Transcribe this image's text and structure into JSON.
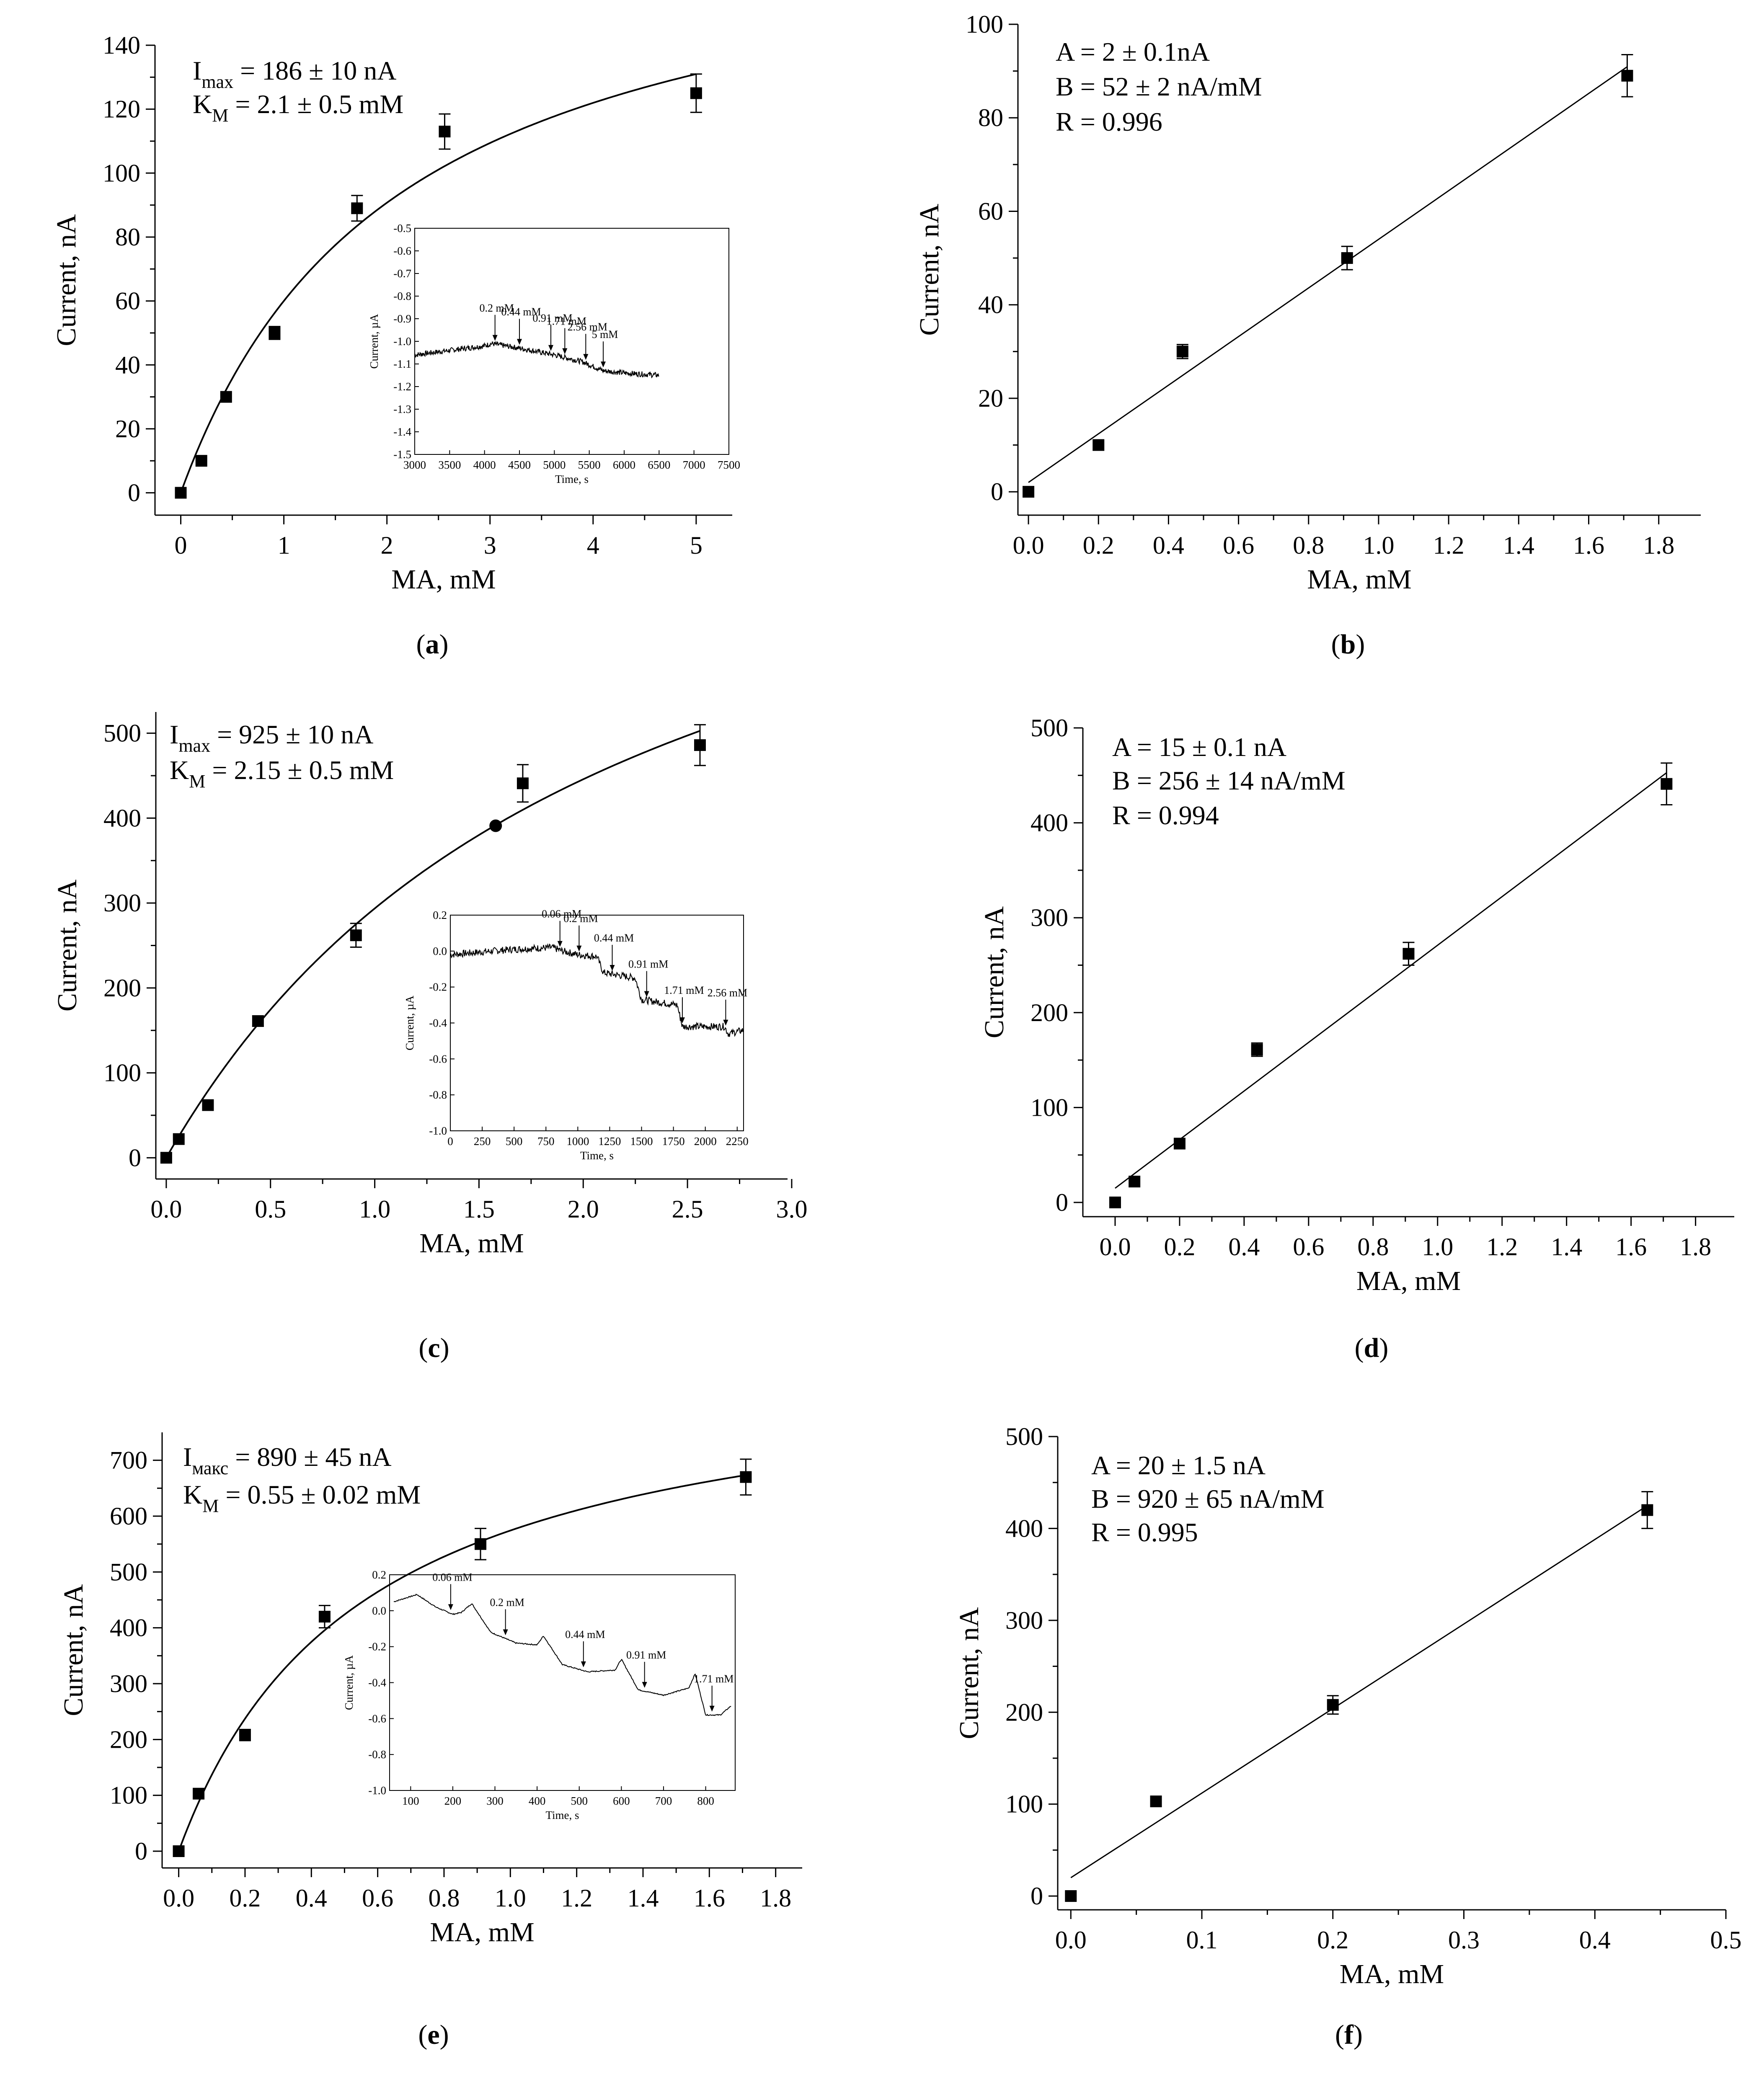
{
  "colors": {
    "ink": "#000000",
    "background": "#ffffff"
  },
  "chart_data": [
    {
      "id": "a",
      "type": "scatter",
      "caption": "a",
      "fit": "mm",
      "xlabel": "MA, mM",
      "ylabel": "Current, nA",
      "xlim": [
        -0.25,
        5.35
      ],
      "ylim": [
        -7,
        140
      ],
      "xticks": [
        0,
        1,
        2,
        3,
        4,
        5
      ],
      "xtick_labels": [
        "0",
        "1",
        "2",
        "3",
        "4",
        "5"
      ],
      "yticks": [
        0,
        20,
        40,
        60,
        80,
        100,
        120,
        140
      ],
      "ytick_labels": [
        "0",
        "20",
        "40",
        "60",
        "80",
        "100",
        "120",
        "140"
      ],
      "series": [
        {
          "name": "data",
          "x": [
            0,
            0.2,
            0.44,
            0.91,
            1.71,
            2.56,
            5
          ],
          "y": [
            0,
            10,
            30,
            50,
            89,
            113,
            125
          ],
          "err": [
            0,
            0,
            0,
            2,
            4,
            5.5,
            6
          ]
        }
      ],
      "fit_params": {
        "Imax": 186,
        "KM": 2.1,
        "x_range": [
          0,
          5
        ]
      },
      "annotation": [
        {
          "base": "I",
          "sub": "max",
          "rest": " = 186 ± 10 nA"
        },
        {
          "base": "K",
          "sub": "M",
          "rest": " = 2.1 ± 0.5 mM"
        }
      ],
      "inset": {
        "xlabel": "Time, s",
        "ylabel": "Current, µA",
        "xlim": [
          3000,
          7500
        ],
        "ylim": [
          -1.5,
          -0.5
        ],
        "xticks": [
          3000,
          3500,
          4000,
          4500,
          5000,
          5500,
          6000,
          6500,
          7000,
          7500
        ],
        "xtick_labels": [
          "3000",
          "3500",
          "4000",
          "4500",
          "5000",
          "5500",
          "6000",
          "6500",
          "7000",
          "7500"
        ],
        "yticks": [
          -1.5,
          -1.4,
          -1.3,
          -1.2,
          -1.1,
          -1.0,
          -0.9,
          -0.8,
          -0.7,
          -0.6,
          -0.5
        ],
        "ytick_labels": [
          "-1.5",
          "-1.4",
          "-1.3",
          "-1.2",
          "-1.1",
          "-1.0",
          "-0.9",
          "-0.8",
          "-0.7",
          "-0.6",
          "-0.5"
        ],
        "trace": [
          [
            3000,
            -1.06
          ],
          [
            3500,
            -1.04
          ],
          [
            4000,
            -1.02
          ],
          [
            4100,
            -1.01
          ],
          [
            4500,
            -1.03
          ],
          [
            5000,
            -1.06
          ],
          [
            5400,
            -1.09
          ],
          [
            5700,
            -1.13
          ],
          [
            6000,
            -1.14
          ],
          [
            6500,
            -1.15
          ]
        ],
        "noise": 0.012,
        "markers": [
          {
            "t": 4150,
            "label": "0.2 mM"
          },
          {
            "t": 4500,
            "label": "0.44 mM"
          },
          {
            "t": 4950,
            "label": "0.91 mM"
          },
          {
            "t": 5150,
            "label": "1.71 mM"
          },
          {
            "t": 5450,
            "label": "2.56 mM"
          },
          {
            "t": 5700,
            "label": "5 mM"
          }
        ]
      }
    },
    {
      "id": "b",
      "type": "scatter",
      "caption": "b",
      "fit": "linear",
      "xlabel": "MA, mM",
      "ylabel": "Current, nA",
      "xlim": [
        -0.03,
        1.92
      ],
      "ylim": [
        -5,
        100
      ],
      "xticks": [
        0,
        0.2,
        0.4,
        0.6,
        0.8,
        1.0,
        1.2,
        1.4,
        1.6,
        1.8
      ],
      "xtick_labels": [
        "0.0",
        "0.2",
        "0.4",
        "0.6",
        "0.8",
        "1.0",
        "1.2",
        "1.4",
        "1.6",
        "1.8"
      ],
      "yticks": [
        0,
        20,
        40,
        60,
        80,
        100
      ],
      "ytick_labels": [
        "0",
        "20",
        "40",
        "60",
        "80",
        "100"
      ],
      "series": [
        {
          "name": "data",
          "x": [
            0,
            0.2,
            0.44,
            0.91,
            1.71
          ],
          "y": [
            0,
            10,
            30,
            50,
            89
          ],
          "err": [
            0,
            0,
            1.5,
            2.5,
            4.5
          ]
        }
      ],
      "fit_params": {
        "A": 2,
        "B": 52,
        "x_range": [
          0,
          1.71
        ]
      },
      "annotation": [
        {
          "base": "A = 2 ± 0.1nA",
          "sub": "",
          "rest": ""
        },
        {
          "base": "B = 52 ± 2 nA/mM",
          "sub": "",
          "rest": ""
        },
        {
          "base": "R = 0.996",
          "sub": "",
          "rest": ""
        }
      ]
    },
    {
      "id": "c",
      "type": "scatter",
      "caption": "c",
      "fit": "mm",
      "xlabel": "MA, mM",
      "ylabel": "Current, nA",
      "xlim": [
        -0.05,
        2.98
      ],
      "ylim": [
        -25,
        525
      ],
      "xticks": [
        0,
        0.5,
        1.0,
        1.5,
        2.0,
        2.5,
        3.0
      ],
      "xtick_labels": [
        "0.0",
        "0.5",
        "1.0",
        "1.5",
        "2.0",
        "2.5",
        "3.0"
      ],
      "yticks": [
        0,
        100,
        200,
        300,
        400,
        500
      ],
      "ytick_labels": [
        "0",
        "100",
        "200",
        "300",
        "400",
        "500"
      ],
      "series": [
        {
          "name": "data",
          "x": [
            0,
            0.06,
            0.2,
            0.44,
            0.91,
            1.71,
            2.56
          ],
          "y": [
            0,
            22,
            62,
            161,
            262,
            441,
            486
          ],
          "err": [
            0,
            0,
            0,
            6,
            14,
            22,
            24
          ]
        }
      ],
      "highlight_point": {
        "x": 1.58,
        "y": 391
      },
      "fit_params": {
        "Imax": 925,
        "KM": 2.15,
        "x_range": [
          0,
          2.56
        ]
      },
      "annotation": [
        {
          "base": "I",
          "sub": "max",
          "rest": " = 925 ± 10 nA"
        },
        {
          "base": "K",
          "sub": "M",
          "rest": " = 2.15 ± 0.5 mM"
        }
      ],
      "inset": {
        "xlabel": "Time, s",
        "ylabel": "Current, µA",
        "xlim": [
          0,
          2300
        ],
        "ylim": [
          -1.0,
          0.2
        ],
        "xticks": [
          0,
          250,
          500,
          750,
          1000,
          1250,
          1500,
          1750,
          2000,
          2250
        ],
        "xtick_labels": [
          "0",
          "250",
          "500",
          "750",
          "1000",
          "1250",
          "1500",
          "1750",
          "2000",
          "2250"
        ],
        "yticks": [
          -1.0,
          -0.8,
          -0.6,
          -0.4,
          -0.2,
          0.0,
          0.2
        ],
        "ytick_labels": [
          "-1.0",
          "-0.8",
          "-0.6",
          "-0.4",
          "-0.2",
          "0.0",
          "0.2"
        ],
        "trace": [
          [
            0,
            -0.02
          ],
          [
            500,
            0.01
          ],
          [
            800,
            0.02
          ],
          [
            880,
            0.0
          ],
          [
            1000,
            -0.02
          ],
          [
            1150,
            -0.03
          ],
          [
            1200,
            -0.12
          ],
          [
            1450,
            -0.15
          ],
          [
            1500,
            -0.27
          ],
          [
            1780,
            -0.3
          ],
          [
            1820,
            -0.42
          ],
          [
            2150,
            -0.42
          ],
          [
            2180,
            -0.46
          ],
          [
            2300,
            -0.44
          ]
        ],
        "noise": 0.02,
        "markers": [
          {
            "t": 860,
            "label": "0.06 mM"
          },
          {
            "t": 1010,
            "label": "0.2 mM"
          },
          {
            "t": 1270,
            "label": "0.44 mM"
          },
          {
            "t": 1540,
            "label": "0.91 mM"
          },
          {
            "t": 1820,
            "label": "1.71 mM"
          },
          {
            "t": 2160,
            "label": "2.56 mM"
          }
        ]
      }
    },
    {
      "id": "d",
      "type": "scatter",
      "caption": "d",
      "fit": "linear",
      "xlabel": "MA, mM",
      "ylabel": "Current, nA",
      "xlim": [
        -0.1,
        1.92
      ],
      "ylim": [
        -15,
        500
      ],
      "xticks": [
        0,
        0.2,
        0.4,
        0.6,
        0.8,
        1.0,
        1.2,
        1.4,
        1.6,
        1.8
      ],
      "xtick_labels": [
        "0.0",
        "0.2",
        "0.4",
        "0.6",
        "0.8",
        "1.0",
        "1.2",
        "1.4",
        "1.6",
        "1.8"
      ],
      "yticks": [
        0,
        100,
        200,
        300,
        400,
        500
      ],
      "ytick_labels": [
        "0",
        "100",
        "200",
        "300",
        "400",
        "500"
      ],
      "series": [
        {
          "name": "data",
          "x": [
            0,
            0.06,
            0.2,
            0.44,
            0.91,
            1.71
          ],
          "y": [
            0,
            22,
            62,
            161,
            262,
            441
          ],
          "err": [
            0,
            0,
            0,
            7,
            12,
            22
          ]
        }
      ],
      "fit_params": {
        "A": 15,
        "B": 256,
        "x_range": [
          0,
          1.71
        ]
      },
      "annotation": [
        {
          "base": "A = 15 ± 0.1 nA",
          "sub": "",
          "rest": ""
        },
        {
          "base": "B = 256 ± 14 nA/mM",
          "sub": "",
          "rest": ""
        },
        {
          "base": "R = 0.994",
          "sub": "",
          "rest": ""
        }
      ]
    },
    {
      "id": "e",
      "type": "scatter",
      "caption": "e",
      "fit": "mm",
      "xlabel": "MA, mM",
      "ylabel": "Current, nA",
      "xlim": [
        -0.05,
        1.88
      ],
      "ylim": [
        -30,
        750
      ],
      "xticks": [
        0,
        0.2,
        0.4,
        0.6,
        0.8,
        1.0,
        1.2,
        1.4,
        1.6,
        1.8
      ],
      "xtick_labels": [
        "0.0",
        "0.2",
        "0.4",
        "0.6",
        "0.8",
        "1.0",
        "1.2",
        "1.4",
        "1.6",
        "1.8"
      ],
      "yticks": [
        0,
        100,
        200,
        300,
        400,
        500,
        600,
        700
      ],
      "ytick_labels": [
        "0",
        "100",
        "200",
        "300",
        "400",
        "500",
        "600",
        "700"
      ],
      "series": [
        {
          "name": "data",
          "x": [
            0,
            0.06,
            0.2,
            0.44,
            0.91,
            1.71
          ],
          "y": [
            0,
            103,
            208,
            420,
            550,
            670
          ],
          "err": [
            0,
            0,
            10,
            20,
            28,
            32
          ]
        }
      ],
      "fit_params": {
        "Imax": 890,
        "KM": 0.55,
        "x_range": [
          0,
          1.71
        ]
      },
      "annotation": [
        {
          "base": "I",
          "sub": "макс",
          "rest": " = 890 ± 45 nA"
        },
        {
          "base": "K",
          "sub": "M",
          "rest": " = 0.55 ± 0.02 mM"
        }
      ],
      "inset": {
        "xlabel": "Time, s",
        "ylabel": "Current, µA",
        "xlim": [
          50,
          870
        ],
        "ylim": [
          -1.0,
          0.2
        ],
        "xticks": [
          100,
          200,
          300,
          400,
          500,
          600,
          700,
          800
        ],
        "xtick_labels": [
          "100",
          "200",
          "300",
          "400",
          "500",
          "600",
          "700",
          "800"
        ],
        "yticks": [
          -1.0,
          -0.8,
          -0.6,
          -0.4,
          -0.2,
          0.0,
          0.2
        ],
        "ytick_labels": [
          "-1.0",
          "-0.8",
          "-0.6",
          "-0.4",
          "-0.2",
          "0.0",
          "0.2"
        ],
        "trace": [
          [
            60,
            0.05
          ],
          [
            115,
            0.09
          ],
          [
            160,
            0.02
          ],
          [
            200,
            -0.02
          ],
          [
            220,
            -0.01
          ],
          [
            245,
            0.04
          ],
          [
            290,
            -0.12
          ],
          [
            350,
            -0.18
          ],
          [
            400,
            -0.19
          ],
          [
            415,
            -0.14
          ],
          [
            460,
            -0.3
          ],
          [
            520,
            -0.34
          ],
          [
            585,
            -0.33
          ],
          [
            600,
            -0.27
          ],
          [
            640,
            -0.44
          ],
          [
            700,
            -0.47
          ],
          [
            760,
            -0.43
          ],
          [
            775,
            -0.35
          ],
          [
            800,
            -0.58
          ],
          [
            835,
            -0.58
          ],
          [
            860,
            -0.53
          ]
        ],
        "noise": 0.003,
        "markers": [
          {
            "t": 195,
            "label": "0.06 mM"
          },
          {
            "t": 325,
            "label": "0.2 mM"
          },
          {
            "t": 510,
            "label": "0.44 mM"
          },
          {
            "t": 655,
            "label": "0.91 mM"
          },
          {
            "t": 815,
            "label": "1.71 mM"
          }
        ]
      }
    },
    {
      "id": "f",
      "type": "scatter",
      "caption": "f",
      "fit": "linear",
      "xlabel": "MA, mM",
      "ylabel": "Current, nA",
      "xlim": [
        -0.01,
        0.5
      ],
      "ylim": [
        -15,
        500
      ],
      "xticks": [
        0,
        0.1,
        0.2,
        0.3,
        0.4,
        0.5
      ],
      "xtick_labels": [
        "0.0",
        "0.1",
        "0.2",
        "0.3",
        "0.4",
        "0.5"
      ],
      "yticks": [
        0,
        100,
        200,
        300,
        400,
        500
      ],
      "ytick_labels": [
        "0",
        "100",
        "200",
        "300",
        "400",
        "500"
      ],
      "series": [
        {
          "name": "data",
          "x": [
            0,
            0.065,
            0.2,
            0.44
          ],
          "y": [
            0,
            103,
            208,
            420
          ],
          "err": [
            0,
            0,
            10,
            20
          ]
        }
      ],
      "fit_params": {
        "A": 20,
        "B": 920,
        "x_range": [
          0,
          0.44
        ]
      },
      "annotation": [
        {
          "base": "A = 20 ± 1.5 nA",
          "sub": "",
          "rest": ""
        },
        {
          "base": "B = 920 ± 65 nA/mM",
          "sub": "",
          "rest": ""
        },
        {
          "base": "R = 0.995",
          "sub": "",
          "rest": ""
        }
      ]
    }
  ]
}
